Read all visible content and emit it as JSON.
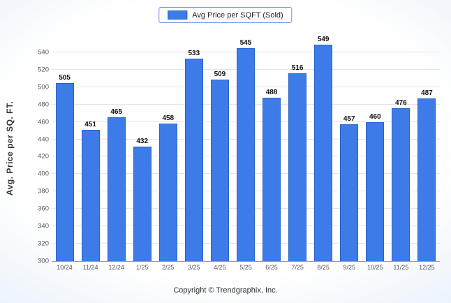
{
  "chart_data": {
    "type": "bar",
    "title": "",
    "categories": [
      "10/24",
      "11/24",
      "12/24",
      "1/25",
      "2/25",
      "3/25",
      "4/25",
      "5/25",
      "6/25",
      "7/25",
      "8/25",
      "9/25",
      "10/25",
      "11/25",
      "12/25"
    ],
    "values": [
      505,
      451,
      465,
      432,
      458,
      533,
      509,
      545,
      488,
      516,
      549,
      457,
      460,
      476,
      487
    ],
    "series_name": "Avg Price per SQFT (Sold)",
    "xlabel": "",
    "ylabel": "Avg. Price per SQ. FT.",
    "ylim": [
      300,
      560
    ],
    "ytick_min": 300,
    "ytick_max": 540,
    "ytick_step": 20,
    "grid": true,
    "legend_position": "top",
    "bar_color": "#3d7ce8",
    "bar_border_color": "#2a62c9"
  },
  "legend": {
    "label": "Avg Price per SQFT (Sold)"
  },
  "footer": {
    "text": "Copyright © Trendgraphix, Inc."
  }
}
